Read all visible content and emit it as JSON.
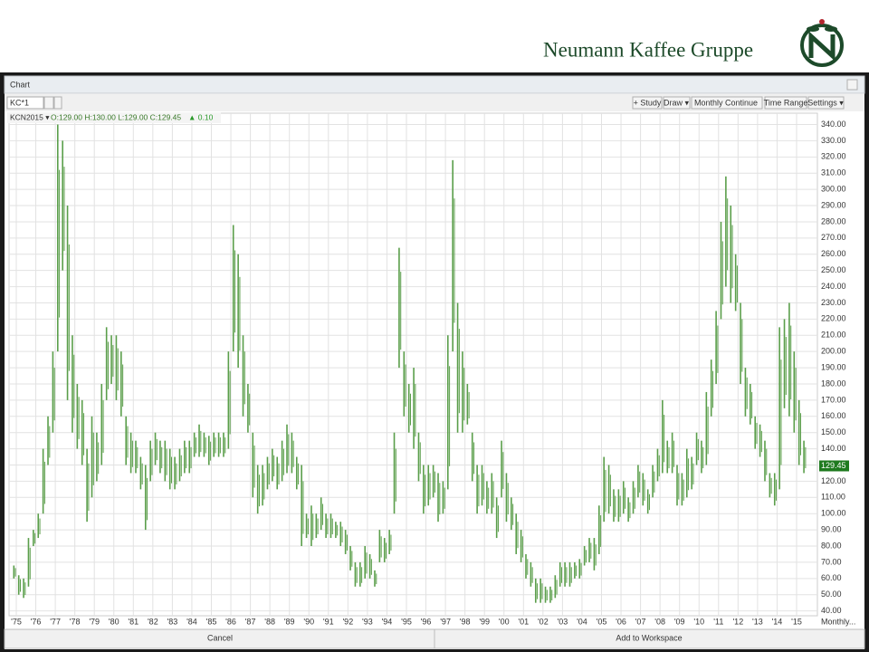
{
  "header": {
    "brand": "Neumann Kaffee Gruppe"
  },
  "window": {
    "title": "Chart",
    "symbol": "KC*1"
  },
  "toolbar": {
    "study": "+ Study",
    "draw": "Draw ▾",
    "period": "Monthly Continue",
    "range": "Time Range",
    "settings": "Settings ▾"
  },
  "info": {
    "contract": "KCN2015 ▾",
    "ohlc": "O:129.00 H:130.00 L:129.00 C:129.45",
    "change": "▲ 0.10"
  },
  "footer": {
    "cancel": "Cancel",
    "add": "Add to Workspace"
  },
  "chart_data": {
    "type": "ohlc",
    "color": "#5a9e4a",
    "x_label": "Monthly...",
    "last_value": 129.45,
    "grid": true,
    "categories": [
      null,
      "'75",
      null,
      null,
      null,
      "'76",
      null,
      null,
      null,
      "'77",
      null,
      null,
      null,
      "'78",
      null,
      null,
      null,
      "'79",
      null,
      null,
      null,
      "'80",
      null,
      null,
      null,
      "'81",
      null,
      null,
      null,
      "'82",
      null,
      null,
      null,
      "'83",
      null,
      null,
      null,
      "'84",
      null,
      null,
      null,
      "'85",
      null,
      null,
      null,
      "'86",
      null,
      null,
      null,
      "'87",
      null,
      null,
      null,
      "'88",
      null,
      null,
      null,
      "'89",
      null,
      null,
      null,
      "'90",
      null,
      null,
      null,
      "'91",
      null,
      null,
      null,
      "'92",
      null,
      null,
      null,
      "'93",
      null,
      null,
      null,
      "'94",
      null,
      null,
      null,
      "'95",
      null,
      null,
      null,
      "'96",
      null,
      null,
      null,
      "'97",
      null,
      null,
      null,
      "'98",
      null,
      null,
      null,
      "'99",
      null,
      null,
      null,
      "'00",
      null,
      null,
      null,
      "'01",
      null,
      null,
      null,
      "'02",
      null,
      null,
      null,
      "'03",
      null,
      null,
      null,
      "'04",
      null,
      null,
      null,
      "'05",
      null,
      null,
      null,
      "'06",
      null,
      null,
      null,
      "'07",
      null,
      null,
      null,
      "'08",
      null,
      null,
      null,
      "'09",
      null,
      null,
      null,
      "'10",
      null,
      null,
      null,
      "'11",
      null,
      null,
      null,
      "'12",
      null,
      null,
      null,
      "'13",
      null,
      null,
      null,
      "'14",
      null,
      null,
      null,
      "'15",
      null
    ],
    "highs": [
      68,
      62,
      60,
      85,
      90,
      100,
      140,
      160,
      200,
      340,
      330,
      290,
      210,
      180,
      170,
      140,
      160,
      150,
      180,
      215,
      210,
      210,
      200,
      160,
      150,
      145,
      135,
      130,
      145,
      150,
      145,
      145,
      140,
      135,
      140,
      145,
      145,
      150,
      155,
      150,
      148,
      150,
      150,
      150,
      200,
      278,
      260,
      210,
      180,
      150,
      130,
      130,
      135,
      140,
      135,
      145,
      155,
      150,
      135,
      130,
      100,
      105,
      100,
      110,
      100,
      100,
      95,
      95,
      90,
      80,
      70,
      70,
      80,
      75,
      65,
      90,
      85,
      90,
      150,
      264,
      200,
      180,
      190,
      150,
      130,
      130,
      130,
      125,
      120,
      210,
      318,
      230,
      200,
      180,
      150,
      130,
      130,
      120,
      125,
      110,
      145,
      125,
      110,
      100,
      90,
      75,
      70,
      60,
      60,
      55,
      55,
      62,
      70,
      70,
      70,
      70,
      72,
      80,
      85,
      85,
      105,
      135,
      130,
      115,
      115,
      120,
      110,
      120,
      130,
      125,
      115,
      130,
      140,
      170,
      145,
      150,
      130,
      125,
      140,
      135,
      150,
      145,
      175,
      195,
      225,
      280,
      308,
      290,
      260,
      230,
      190,
      180,
      160,
      155,
      145,
      125,
      125,
      215,
      220,
      230,
      200,
      170,
      145
    ],
    "lows": [
      60,
      50,
      48,
      55,
      80,
      85,
      100,
      130,
      150,
      200,
      250,
      170,
      150,
      140,
      130,
      95,
      110,
      120,
      130,
      170,
      180,
      170,
      160,
      130,
      125,
      125,
      115,
      90,
      120,
      130,
      125,
      120,
      115,
      115,
      120,
      125,
      125,
      135,
      135,
      135,
      130,
      135,
      135,
      135,
      140,
      200,
      190,
      160,
      150,
      110,
      100,
      105,
      115,
      120,
      115,
      120,
      125,
      125,
      115,
      80,
      85,
      80,
      85,
      90,
      85,
      85,
      85,
      80,
      75,
      65,
      55,
      55,
      60,
      60,
      55,
      70,
      70,
      75,
      100,
      190,
      160,
      150,
      140,
      120,
      100,
      105,
      110,
      95,
      100,
      115,
      200,
      150,
      150,
      155,
      120,
      100,
      105,
      100,
      100,
      85,
      110,
      95,
      90,
      75,
      70,
      60,
      55,
      45,
      45,
      45,
      45,
      48,
      55,
      55,
      55,
      60,
      60,
      68,
      70,
      65,
      75,
      95,
      100,
      95,
      95,
      100,
      95,
      100,
      110,
      105,
      100,
      110,
      120,
      125,
      125,
      125,
      105,
      105,
      110,
      115,
      130,
      125,
      130,
      160,
      180,
      220,
      240,
      230,
      225,
      180,
      160,
      155,
      140,
      135,
      120,
      110,
      105,
      115,
      165,
      160,
      150,
      130,
      125
    ],
    "ylim": [
      37,
      347
    ],
    "yticks": [
      {
        "value": 40,
        "label": "40.00"
      },
      {
        "value": 50,
        "label": "50.00"
      },
      {
        "value": 60,
        "label": "60.00"
      },
      {
        "value": 70,
        "label": "70.00"
      },
      {
        "value": 80,
        "label": "80.00"
      },
      {
        "value": 90,
        "label": "90.00"
      },
      {
        "value": 100,
        "label": "100.00"
      },
      {
        "value": 110,
        "label": "110.00"
      },
      {
        "value": 120,
        "label": "120.00"
      },
      {
        "value": 130,
        "label": "130.00"
      },
      {
        "value": 140,
        "label": "140.00"
      },
      {
        "value": 150,
        "label": "150.00"
      },
      {
        "value": 160,
        "label": "160.00"
      },
      {
        "value": 170,
        "label": "170.00"
      },
      {
        "value": 180,
        "label": "180.00"
      },
      {
        "value": 190,
        "label": "190.00"
      },
      {
        "value": 200,
        "label": "200.00"
      },
      {
        "value": 210,
        "label": "210.00"
      },
      {
        "value": 220,
        "label": "220.00"
      },
      {
        "value": 230,
        "label": "230.00"
      },
      {
        "value": 240,
        "label": "240.00"
      },
      {
        "value": 250,
        "label": "250.00"
      },
      {
        "value": 260,
        "label": "260.00"
      },
      {
        "value": 270,
        "label": "270.00"
      },
      {
        "value": 280,
        "label": "280.00"
      },
      {
        "value": 290,
        "label": "290.00"
      },
      {
        "value": 300,
        "label": "300.00"
      },
      {
        "value": 310,
        "label": "310.00"
      },
      {
        "value": 320,
        "label": "320.00"
      },
      {
        "value": 330,
        "label": "330.00"
      },
      {
        "value": 340,
        "label": "340.00"
      }
    ]
  }
}
